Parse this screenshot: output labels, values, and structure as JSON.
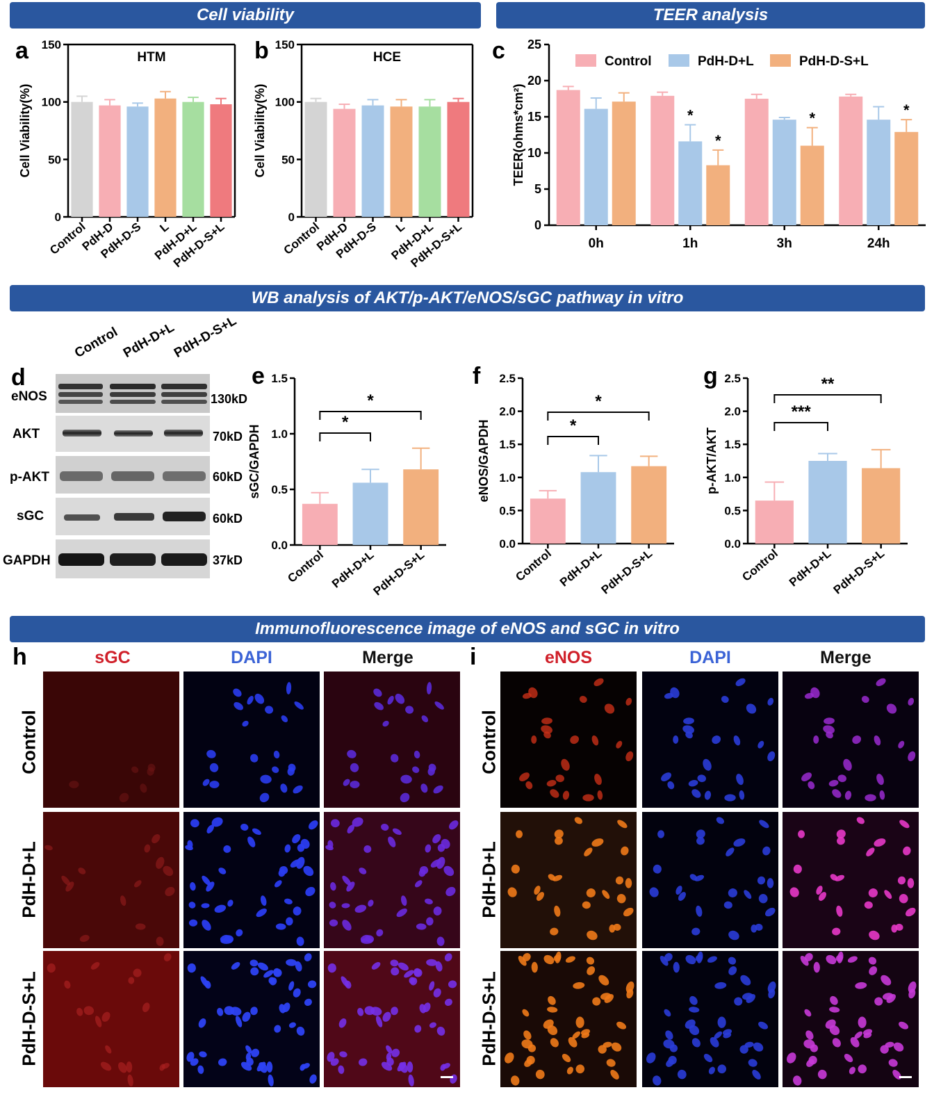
{
  "banners": {
    "cell_viability": "Cell viability",
    "teer": "TEER analysis",
    "wb": "WB analysis of AKT/p-AKT/eNOS/sGC pathway in vitro",
    "if": "Immunofluorescence image  of eNOS and sGC in vitro"
  },
  "panels": {
    "a": "a",
    "b": "b",
    "c": "c",
    "d": "d",
    "e": "e",
    "f": "f",
    "g": "g",
    "h": "h",
    "i": "i"
  },
  "colors": {
    "banner": "#2a579f",
    "control_gray": "#d4d4d4",
    "pink": "#f7aeb4",
    "blue": "#a8c8e8",
    "orange": "#f2b07e",
    "green": "#a6dea0",
    "red": "#ef7a7e"
  },
  "chart_data": [
    {
      "id": "a",
      "type": "bar",
      "title": "HTM",
      "ylabel": "Cell Viability(%)",
      "ylim": [
        0,
        150
      ],
      "yticks": [
        "0",
        "50",
        "100",
        "150"
      ],
      "categories": [
        "Control",
        "PdH-D",
        "PdH-D-S",
        "L",
        "PdH-D+L",
        "PdH-D-S+L"
      ],
      "values": [
        100,
        97,
        96,
        103,
        100,
        98
      ],
      "errors": [
        5,
        5,
        3,
        6,
        4,
        5
      ],
      "colors": [
        "#d4d4d4",
        "#f7aeb4",
        "#a8c8e8",
        "#f2b07e",
        "#a6dea0",
        "#ef7a7e"
      ]
    },
    {
      "id": "b",
      "type": "bar",
      "title": "HCE",
      "ylabel": "Cell Viability(%)",
      "ylim": [
        0,
        150
      ],
      "yticks": [
        "0",
        "50",
        "100",
        "150"
      ],
      "categories": [
        "Control",
        "PdH-D",
        "PdH-D-S",
        "L",
        "PdH-D+L",
        "PdH-D-S+L"
      ],
      "values": [
        100,
        94,
        97,
        96,
        96,
        100
      ],
      "errors": [
        3,
        4,
        5,
        6,
        6,
        3
      ],
      "colors": [
        "#d4d4d4",
        "#f7aeb4",
        "#a8c8e8",
        "#f2b07e",
        "#a6dea0",
        "#ef7a7e"
      ]
    },
    {
      "id": "c",
      "type": "bar",
      "ylabel": "TEER(ohms*cm²)",
      "ylim": [
        0,
        25
      ],
      "yticks": [
        "0",
        "5",
        "10",
        "15",
        "20",
        "25"
      ],
      "categories": [
        "0h",
        "1h",
        "3h",
        "24h"
      ],
      "legend_position": "top",
      "series": [
        {
          "name": "Control",
          "color": "#f7aeb4",
          "values": [
            18.7,
            17.9,
            17.5,
            17.8
          ],
          "errors": [
            0.5,
            0.5,
            0.6,
            0.3
          ],
          "stars": [
            "",
            "",
            "",
            ""
          ]
        },
        {
          "name": "PdH-D+L",
          "color": "#a8c8e8",
          "values": [
            16.1,
            11.6,
            14.6,
            14.6
          ],
          "errors": [
            1.5,
            2.3,
            0.3,
            1.8
          ],
          "stars": [
            "",
            "*",
            "",
            ""
          ]
        },
        {
          "name": "PdH-D-S+L",
          "color": "#f2b07e",
          "values": [
            17.1,
            8.3,
            11.0,
            12.9
          ],
          "errors": [
            1.2,
            2.1,
            2.5,
            1.7
          ],
          "stars": [
            "",
            "*",
            "*",
            "*"
          ]
        }
      ]
    },
    {
      "id": "e",
      "type": "bar",
      "ylabel": "sGC/GAPDH",
      "ylim": [
        0,
        1.5
      ],
      "yticks": [
        "0.0",
        "0.5",
        "1.0",
        "1.5"
      ],
      "categories": [
        "Control",
        "PdH-D+L",
        "PdH-D-S+L"
      ],
      "values": [
        0.37,
        0.56,
        0.68
      ],
      "errors": [
        0.1,
        0.12,
        0.19
      ],
      "colors": [
        "#f7aeb4",
        "#a8c8e8",
        "#f2b07e"
      ],
      "brackets": [
        {
          "from": 0,
          "to": 1,
          "label": "*",
          "level": 1
        },
        {
          "from": 0,
          "to": 2,
          "label": "*",
          "level": 2
        }
      ]
    },
    {
      "id": "f",
      "type": "bar",
      "ylabel": "eNOS/GAPDH",
      "ylim": [
        0,
        2.5
      ],
      "yticks": [
        "0.0",
        "0.5",
        "1.0",
        "1.5",
        "2.0",
        "2.5"
      ],
      "categories": [
        "Control",
        "PdH-D+L",
        "PdH-D-S+L"
      ],
      "values": [
        0.68,
        1.08,
        1.17
      ],
      "errors": [
        0.12,
        0.25,
        0.15
      ],
      "colors": [
        "#f7aeb4",
        "#a8c8e8",
        "#f2b07e"
      ],
      "brackets": [
        {
          "from": 0,
          "to": 1,
          "label": "*",
          "level": 1
        },
        {
          "from": 0,
          "to": 2,
          "label": "*",
          "level": 2
        }
      ]
    },
    {
      "id": "g",
      "type": "bar",
      "ylabel": "p-AKT/AKT",
      "ylim": [
        0,
        2.5
      ],
      "yticks": [
        "0.0",
        "0.5",
        "1.0",
        "1.5",
        "2.0",
        "2.5"
      ],
      "categories": [
        "Control",
        "PdH-D+L",
        "PdH-D-S+L"
      ],
      "values": [
        0.65,
        1.25,
        1.14
      ],
      "errors": [
        0.28,
        0.11,
        0.28
      ],
      "colors": [
        "#f7aeb4",
        "#a8c8e8",
        "#f2b07e"
      ],
      "brackets": [
        {
          "from": 0,
          "to": 1,
          "label": "***",
          "level": 1
        },
        {
          "from": 0,
          "to": 2,
          "label": "**",
          "level": 2
        }
      ]
    }
  ],
  "western_blot": {
    "lanes": [
      "Control",
      "PdH-D+L",
      "PdH-D-S+L"
    ],
    "proteins": [
      "eNOS",
      "AKT",
      "p-AKT",
      "sGC",
      "GAPDH"
    ],
    "sizes": [
      "130kD",
      "70kD",
      "60kD",
      "60kD",
      "37kD"
    ]
  },
  "immunofluorescence": {
    "h_columns": [
      "sGC",
      "DAPI",
      "Merge"
    ],
    "h_column_colors": [
      "#d0202a",
      "#3b63d6",
      "#111111"
    ],
    "i_columns": [
      "eNOS",
      "DAPI",
      "Merge"
    ],
    "i_column_colors": [
      "#d0202a",
      "#3b63d6",
      "#111111"
    ],
    "rows": [
      "Control",
      "PdH-D+L",
      "PdH-D-S+L"
    ]
  }
}
